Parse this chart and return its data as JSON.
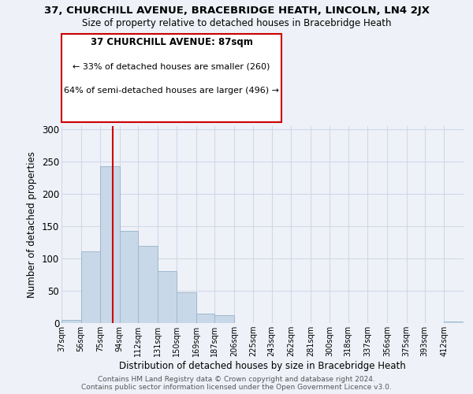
{
  "title1": "37, CHURCHILL AVENUE, BRACEBRIDGE HEATH, LINCOLN, LN4 2JX",
  "title2": "Size of property relative to detached houses in Bracebridge Heath",
  "xlabel": "Distribution of detached houses by size in Bracebridge Heath",
  "ylabel": "Number of detached properties",
  "bin_labels": [
    "37sqm",
    "56sqm",
    "75sqm",
    "94sqm",
    "112sqm",
    "131sqm",
    "150sqm",
    "169sqm",
    "187sqm",
    "206sqm",
    "225sqm",
    "243sqm",
    "262sqm",
    "281sqm",
    "300sqm",
    "318sqm",
    "337sqm",
    "356sqm",
    "375sqm",
    "393sqm",
    "412sqm"
  ],
  "bin_edges": [
    37,
    56,
    75,
    94,
    112,
    131,
    150,
    169,
    187,
    206,
    225,
    243,
    262,
    281,
    300,
    318,
    337,
    356,
    375,
    393,
    412
  ],
  "bar_heights": [
    5,
    111,
    243,
    143,
    120,
    80,
    48,
    15,
    12,
    0,
    0,
    0,
    0,
    0,
    0,
    0,
    0,
    0,
    0,
    0,
    2
  ],
  "bar_color": "#c8d8e8",
  "bar_edge_color": "#a0b8cc",
  "grid_color": "#d0d8e8",
  "bg_color": "#eef2f8",
  "property_line_x": 87,
  "property_line_color": "#cc0000",
  "annotation_line1": "37 CHURCHILL AVENUE: 87sqm",
  "annotation_line2": "← 33% of detached houses are smaller (260)",
  "annotation_line3": "64% of semi-detached houses are larger (496) →",
  "annotation_box_color": "#ffffff",
  "annotation_box_edge": "#cc0000",
  "footer1": "Contains HM Land Registry data © Crown copyright and database right 2024.",
  "footer2": "Contains public sector information licensed under the Open Government Licence v3.0.",
  "ylim": [
    0,
    305
  ],
  "yticks": [
    0,
    50,
    100,
    150,
    200,
    250,
    300
  ]
}
